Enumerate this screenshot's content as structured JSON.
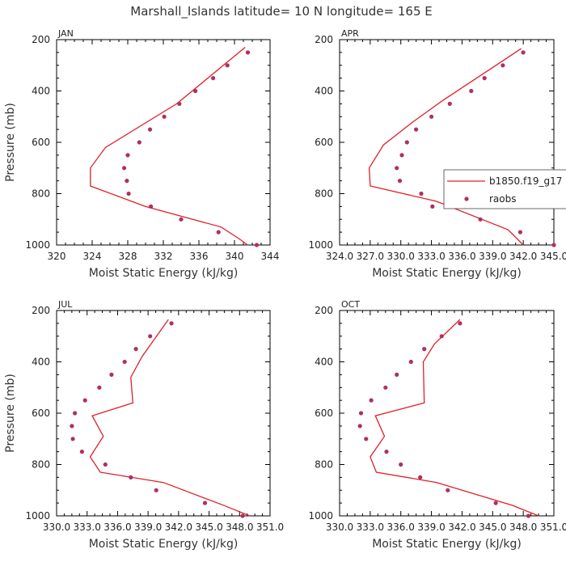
{
  "title": "Marshall_Islands  latitude= 10 N longitude= 165 E",
  "colors": {
    "model": "#e0202a",
    "obs": "#b03060"
  },
  "legend": {
    "model_label": "b1850.f19_g17",
    "obs_label": "raobs"
  },
  "chart_data": [
    {
      "type": "line",
      "label": "JAN",
      "xlabel": "Moist Static Energy (kJ/kg)",
      "ylabel": "Pressure (mb)",
      "xlim": [
        320,
        344
      ],
      "ylim": [
        1000,
        200
      ],
      "xticks": [
        "320",
        "324",
        "328",
        "332",
        "336",
        "340",
        "344"
      ],
      "yticks": [
        "200",
        "400",
        "600",
        "800",
        "1000"
      ],
      "model": {
        "x": [
          341.2,
          333.5,
          325.5,
          323.8,
          323.8,
          330,
          338.5,
          340.5,
          341.5
        ],
        "y": [
          230,
          450,
          620,
          700,
          770,
          850,
          930,
          975,
          1000
        ]
      },
      "raobs": {
        "x": [
          341.5,
          339.2,
          337.6,
          335.6,
          333.8,
          332.1,
          330.5,
          329.3,
          328.0,
          327.6,
          327.9,
          328.1,
          330.6,
          334.0,
          338.2,
          342.5
        ],
        "y": [
          250,
          300,
          350,
          400,
          450,
          500,
          550,
          600,
          650,
          700,
          750,
          800,
          850,
          900,
          950,
          1000
        ]
      }
    },
    {
      "type": "line",
      "label": "APR",
      "xlabel": "Moist Static Energy (kJ/kg)",
      "ylabel": "",
      "xlim": [
        324.0,
        345.0
      ],
      "ylim": [
        1000,
        200
      ],
      "xticks": [
        "324.0",
        "327.0",
        "330.0",
        "333.0",
        "336.0",
        "339.0",
        "342.0",
        "345.0"
      ],
      "yticks": [
        "200",
        "400",
        "600",
        "800",
        "1000"
      ],
      "model": {
        "x": [
          341.8,
          334.0,
          331.2,
          328.3,
          326.9,
          327.0,
          333.5,
          340.5,
          342.0
        ],
        "y": [
          235,
          440,
          520,
          610,
          700,
          770,
          830,
          940,
          1000
        ]
      },
      "raobs": {
        "x": [
          342.0,
          340.0,
          338.2,
          336.9,
          334.8,
          333.0,
          331.5,
          330.6,
          330.1,
          329.6,
          329.9,
          332.0,
          333.1,
          337.8,
          341.7,
          345.0
        ],
        "y": [
          250,
          300,
          350,
          400,
          450,
          500,
          550,
          600,
          650,
          700,
          750,
          800,
          850,
          900,
          950,
          1000
        ]
      }
    },
    {
      "type": "line",
      "label": "JUL",
      "xlabel": "Moist Static Energy (kJ/kg)",
      "ylabel": "Pressure (mb)",
      "xlim": [
        330.0,
        351.0
      ],
      "ylim": [
        1000,
        200
      ],
      "xticks": [
        "330.0",
        "333.0",
        "336.0",
        "339.0",
        "342.0",
        "345.0",
        "348.0",
        "351.0"
      ],
      "yticks": [
        "200",
        "400",
        "600",
        "800",
        "1000"
      ],
      "model": {
        "x": [
          341.0,
          338.4,
          337.3,
          337.5,
          333.5,
          334.6,
          333.3,
          334.3,
          340.5,
          346.5,
          349.0
        ],
        "y": [
          235,
          380,
          460,
          560,
          610,
          690,
          770,
          830,
          870,
          960,
          1000
        ]
      },
      "raobs": {
        "x": [
          341.3,
          339.2,
          337.8,
          336.7,
          335.4,
          334.2,
          332.8,
          331.8,
          331.5,
          331.6,
          332.5,
          334.8,
          337.3,
          339.8,
          344.6,
          348.3
        ],
        "y": [
          250,
          300,
          350,
          400,
          450,
          500,
          550,
          600,
          650,
          700,
          750,
          800,
          850,
          900,
          950,
          1000
        ]
      }
    },
    {
      "type": "line",
      "label": "OCT",
      "xlabel": "Moist Static Energy (kJ/kg)",
      "ylabel": "",
      "xlim": [
        330.0,
        351.0
      ],
      "ylim": [
        1000,
        200
      ],
      "xticks": [
        "330.0",
        "333.0",
        "336.0",
        "339.0",
        "342.0",
        "345.0",
        "348.0",
        "351.0"
      ],
      "yticks": [
        "200",
        "400",
        "600",
        "800",
        "1000"
      ],
      "model": {
        "x": [
          341.8,
          339.3,
          338.2,
          338.3,
          333.5,
          334.4,
          333.0,
          333.6,
          339.5,
          347.0,
          349.5
        ],
        "y": [
          235,
          330,
          400,
          560,
          610,
          690,
          770,
          830,
          870,
          960,
          1000
        ]
      },
      "raobs": {
        "x": [
          341.8,
          340.0,
          338.3,
          337.0,
          335.6,
          334.5,
          333.1,
          332.1,
          332.0,
          332.6,
          334.6,
          336.0,
          337.9,
          340.6,
          345.3,
          348.5
        ],
        "y": [
          250,
          300,
          350,
          400,
          450,
          500,
          550,
          600,
          650,
          700,
          750,
          800,
          850,
          900,
          950,
          1000
        ]
      }
    }
  ]
}
